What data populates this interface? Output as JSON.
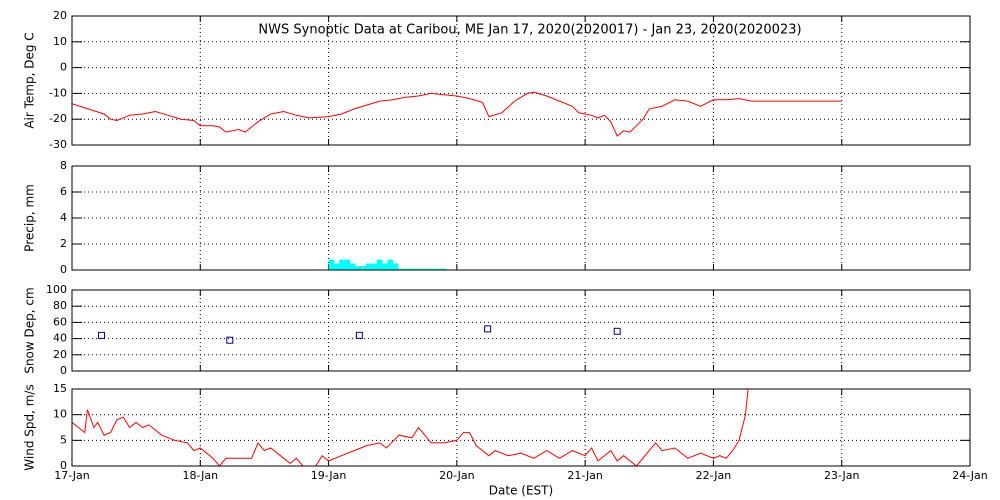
{
  "chart_data": [
    {
      "type": "line",
      "title": "NWS Synoptic Data at Caribou, ME   Jan 17, 2020(2020017) - Jan 23, 2020(2020023)",
      "ylabel": "Air Temp, Deg C",
      "color": "#ff0000",
      "grid": true,
      "xlim": [
        0,
        7
      ],
      "xticks": [
        0,
        1,
        2,
        3,
        4,
        5,
        6,
        7
      ],
      "ylim": [
        -30,
        20
      ],
      "yticks": [
        -30,
        -20,
        -10,
        0,
        10,
        20
      ],
      "x": [
        0,
        0.125,
        0.25,
        0.3,
        0.35,
        0.45,
        0.55,
        0.65,
        0.75,
        0.85,
        0.95,
        1.0,
        1.1,
        1.15,
        1.2,
        1.3,
        1.35,
        1.45,
        1.55,
        1.65,
        1.75,
        1.85,
        2.0,
        2.1,
        2.2,
        2.3,
        2.4,
        2.5,
        2.6,
        2.7,
        2.8,
        2.9,
        3.0,
        3.1,
        3.2,
        3.25,
        3.35,
        3.45,
        3.55,
        3.6,
        3.7,
        3.8,
        3.9,
        3.95,
        4.05,
        4.1,
        4.15,
        4.2,
        4.25,
        4.3,
        4.35,
        4.45,
        4.5,
        4.6,
        4.7,
        4.8,
        4.9,
        5.0,
        5.1,
        5.2,
        5.3,
        6.0
      ],
      "values": [
        -14,
        -16,
        -18,
        -20,
        -20.5,
        -18.5,
        -18,
        -17,
        -18.5,
        -20,
        -20.5,
        -22.5,
        -22.5,
        -23,
        -25,
        -24,
        -25,
        -21,
        -18,
        -17,
        -18.5,
        -19.5,
        -19,
        -18,
        -16,
        -14.5,
        -13,
        -12.5,
        -11.5,
        -11,
        -10,
        -10.5,
        -11,
        -12,
        -13.5,
        -19,
        -17.5,
        -13,
        -10,
        -9.5,
        -11,
        -13,
        -15,
        -17.5,
        -18.5,
        -19.5,
        -18.5,
        -21,
        -26.5,
        -24.5,
        -25,
        -20,
        -16,
        -15,
        -12.5,
        -13,
        -15,
        -12.5,
        -12.5,
        -12,
        -13,
        -13
      ]
    },
    {
      "type": "bar",
      "ylabel": "Precip, mm",
      "color": "#00ffff",
      "grid": true,
      "xlim": [
        0,
        7
      ],
      "xticks": [
        0,
        1,
        2,
        3,
        4,
        5,
        6,
        7
      ],
      "ylim": [
        0,
        8
      ],
      "yticks": [
        0,
        2,
        4,
        6,
        8
      ],
      "x": [
        2,
        2.042,
        2.083,
        2.125,
        2.167,
        2.208,
        2.25,
        2.292,
        2.333,
        2.375,
        2.417,
        2.458,
        2.5,
        2.542,
        2.583,
        2.625,
        2.667,
        2.708,
        2.75,
        2.792,
        2.833,
        2.875
      ],
      "values": [
        0.8,
        0.5,
        0.8,
        0.8,
        0.5,
        0.3,
        0.3,
        0.5,
        0.5,
        0.8,
        0.5,
        0.8,
        0.5,
        0.1,
        0.1,
        0.1,
        0.1,
        0.1,
        0.1,
        0.1,
        0.1,
        0.1
      ]
    },
    {
      "type": "scatter",
      "ylabel": "Snow Dep, cm",
      "color": "#00008b",
      "grid": true,
      "xlim": [
        0,
        7
      ],
      "xticks": [
        0,
        1,
        2,
        3,
        4,
        5,
        6,
        7
      ],
      "ylim": [
        0,
        100
      ],
      "yticks": [
        0,
        20,
        40,
        60,
        80,
        100
      ],
      "x": [
        0.23,
        1.23,
        2.24,
        3.24,
        4.25
      ],
      "values": [
        44,
        38,
        44,
        52,
        49
      ]
    },
    {
      "type": "line",
      "ylabel": "Wind Spd, m/s",
      "xlabel": "Date (EST)",
      "color": "#ff0000",
      "grid": true,
      "xlim": [
        0,
        7
      ],
      "xticks": [
        {
          "value": 0,
          "label": "17-Jan"
        },
        {
          "value": 1,
          "label": "18-Jan"
        },
        {
          "value": 2,
          "label": "19-Jan"
        },
        {
          "value": 3,
          "label": "20-Jan"
        },
        {
          "value": 4,
          "label": "21-Jan"
        },
        {
          "value": 5,
          "label": "22-Jan"
        },
        {
          "value": 6,
          "label": "23-Jan"
        },
        {
          "value": 7,
          "label": "24-Jan"
        }
      ],
      "ylim": [
        0,
        15
      ],
      "yticks": [
        0,
        5,
        10,
        15
      ],
      "x": [
        0,
        0.05,
        0.1,
        0.12,
        0.17,
        0.2,
        0.25,
        0.3,
        0.35,
        0.4,
        0.45,
        0.5,
        0.55,
        0.6,
        0.7,
        0.8,
        0.9,
        0.95,
        1.0,
        1.1,
        1.15,
        1.2,
        1.3,
        1.4,
        1.45,
        1.5,
        1.55,
        1.65,
        1.7,
        1.75,
        1.8,
        1.9,
        1.95,
        2.0,
        2.1,
        2.2,
        2.3,
        2.4,
        2.45,
        2.55,
        2.65,
        2.7,
        2.75,
        2.8,
        2.9,
        3.0,
        3.05,
        3.1,
        3.15,
        3.25,
        3.3,
        3.4,
        3.5,
        3.6,
        3.7,
        3.8,
        3.9,
        4.0,
        4.05,
        4.1,
        4.2,
        4.25,
        4.3,
        4.4,
        4.5,
        4.55,
        4.6,
        4.7,
        4.8,
        4.9,
        5.0,
        5.05,
        5.1,
        5.15,
        5.2,
        5.25,
        5.27
      ],
      "values": [
        8.5,
        7.5,
        6.5,
        11,
        7.5,
        8.5,
        6,
        6.5,
        9,
        9.5,
        7.5,
        8.5,
        7.5,
        8,
        6,
        5,
        4.5,
        3,
        3.5,
        1.5,
        0,
        1.5,
        1.5,
        1.5,
        4.5,
        3,
        3.5,
        1.5,
        0.5,
        1.5,
        0,
        0,
        2,
        1,
        2,
        3,
        4,
        4.5,
        3.5,
        6,
        5.5,
        7.5,
        6,
        4.5,
        4.5,
        5,
        6.5,
        6.5,
        4,
        2,
        3,
        2,
        2.5,
        1.5,
        3,
        1.5,
        3,
        2,
        3.5,
        1,
        3,
        1,
        2,
        0,
        3,
        4.5,
        3,
        3.5,
        1.5,
        2.5,
        1.5,
        2,
        1.5,
        3,
        5,
        10,
        15
      ]
    }
  ]
}
